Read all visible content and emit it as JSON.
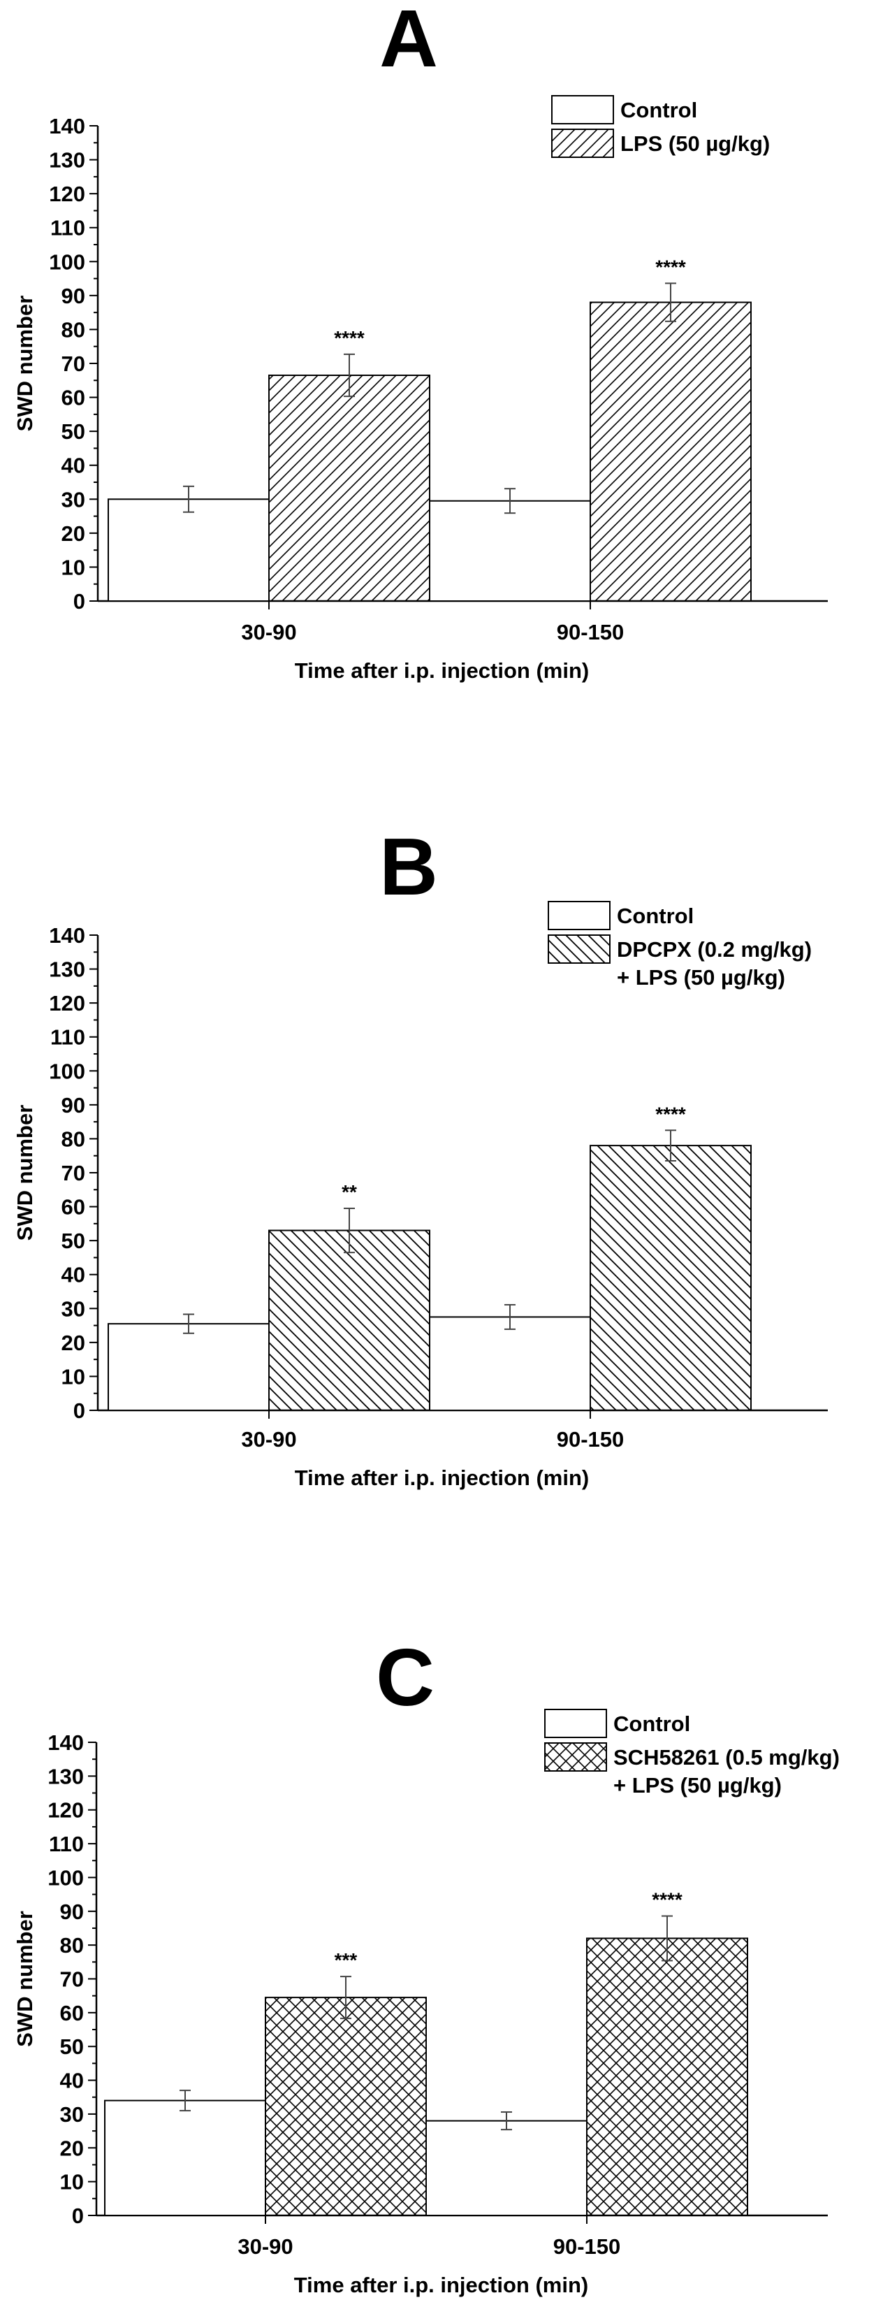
{
  "chart_data": [
    {
      "type": "bar",
      "panel_letter": "A",
      "categories": [
        "30-90",
        "90-150"
      ],
      "series": [
        {
          "name": "Control",
          "values": [
            30,
            29.5
          ],
          "errors": [
            3.8,
            3.6
          ],
          "fill": "white"
        },
        {
          "name": "LPS (50 µg/kg)",
          "name_line2": "",
          "values": [
            66.5,
            88
          ],
          "errors": [
            6.2,
            5.6
          ],
          "fill": "hatch-diag-right",
          "significance": [
            "****",
            "****"
          ]
        }
      ],
      "xlabel": "Time after i.p. injection (min)",
      "ylabel": "SWD number",
      "ylim": [
        0,
        140
      ],
      "yticks": [
        0,
        10,
        20,
        30,
        40,
        50,
        60,
        70,
        80,
        90,
        100,
        110,
        120,
        130,
        140
      ],
      "legend_position": "top-right",
      "grid": false
    },
    {
      "type": "bar",
      "panel_letter": "B",
      "categories": [
        "30-90",
        "90-150"
      ],
      "series": [
        {
          "name": "Control",
          "values": [
            25.5,
            27.5
          ],
          "errors": [
            2.8,
            3.6
          ],
          "fill": "white"
        },
        {
          "name": "DPCPX (0.2 mg/kg)",
          "name_line2": "+ LPS (50 µg/kg)",
          "values": [
            53,
            78
          ],
          "errors": [
            6.5,
            4.5
          ],
          "fill": "hatch-diag-left",
          "significance": [
            "**",
            "****"
          ]
        }
      ],
      "xlabel": "Time after i.p. injection (min)",
      "ylabel": "SWD number",
      "ylim": [
        0,
        140
      ],
      "yticks": [
        0,
        10,
        20,
        30,
        40,
        50,
        60,
        70,
        80,
        90,
        100,
        110,
        120,
        130,
        140
      ],
      "legend_position": "top-right",
      "grid": false
    },
    {
      "type": "bar",
      "panel_letter": "C",
      "categories": [
        "30-90",
        "90-150"
      ],
      "series": [
        {
          "name": "Control",
          "values": [
            34,
            28
          ],
          "errors": [
            3,
            2.6
          ],
          "fill": "white"
        },
        {
          "name": "SCH58261 (0.5 mg/kg)",
          "name_line2": "+ LPS (50 µg/kg)",
          "values": [
            64.5,
            82
          ],
          "errors": [
            6.2,
            6.6
          ],
          "fill": "hatch-cross",
          "significance": [
            "***",
            "****"
          ]
        }
      ],
      "xlabel": "Time after i.p. injection (min)",
      "ylabel": "SWD number",
      "ylim": [
        0,
        140
      ],
      "yticks": [
        0,
        10,
        20,
        30,
        40,
        50,
        60,
        70,
        80,
        90,
        100,
        110,
        120,
        130,
        140
      ],
      "legend_position": "top-right",
      "grid": false
    }
  ]
}
